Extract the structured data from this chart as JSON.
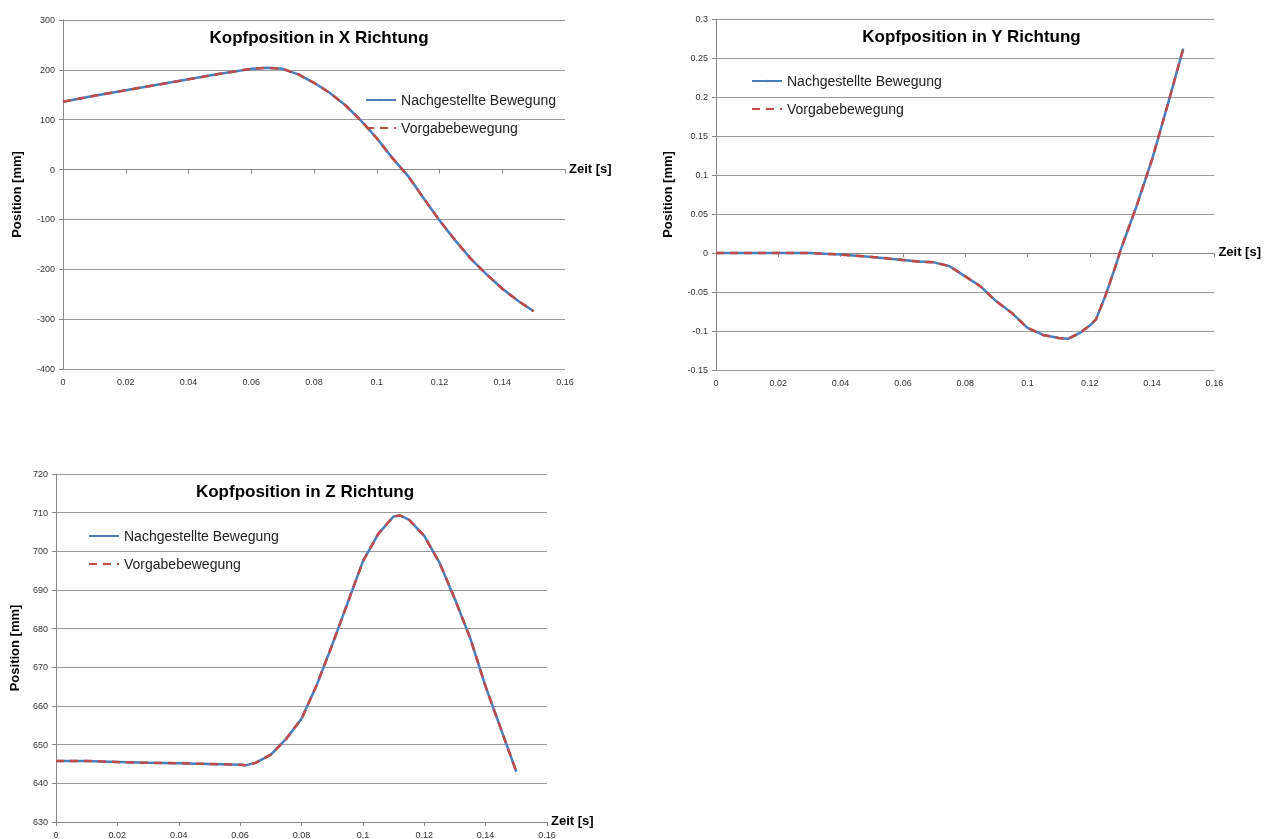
{
  "chart_data": [
    {
      "type": "line",
      "title": "Kopfposition in X Richtung",
      "xlabel": "Zeit [s]",
      "ylabel": "Position [mm]",
      "x": [
        0,
        0.01,
        0.02,
        0.03,
        0.04,
        0.05,
        0.06,
        0.065,
        0.07,
        0.075,
        0.08,
        0.085,
        0.09,
        0.095,
        0.1,
        0.105,
        0.11,
        0.115,
        0.12,
        0.125,
        0.13,
        0.135,
        0.14,
        0.145,
        0.15
      ],
      "series": [
        {
          "name": "Nachgestellte Bewegung",
          "color": "#4a7ebb",
          "line_style": "solid",
          "values": [
            136,
            148,
            159,
            170,
            181,
            192,
            202,
            204,
            202,
            191,
            174,
            154,
            129,
            98,
            63,
            23,
            -13,
            -58,
            -102,
            -142,
            -179,
            -210,
            -239,
            -263,
            -284
          ]
        },
        {
          "name": "Vorgabebewegung",
          "color": "#be4b48",
          "line_style": "dashed",
          "values": [
            136,
            148,
            159,
            170,
            181,
            192,
            202,
            204,
            202,
            191,
            174,
            154,
            129,
            98,
            63,
            23,
            -13,
            -58,
            -102,
            -142,
            -179,
            -210,
            -239,
            -263,
            -284
          ]
        }
      ],
      "xlim": [
        0,
        0.16
      ],
      "xticks": [
        0,
        0.02,
        0.04,
        0.06,
        0.08,
        0.1,
        0.12,
        0.14,
        0.16
      ],
      "ylim": [
        -400,
        300
      ],
      "yticks": [
        -400,
        -300,
        -200,
        -100,
        0,
        100,
        200,
        300
      ],
      "grid": "y",
      "legend": "top right",
      "marker": "none"
    },
    {
      "type": "line",
      "title": "Kopfposition in Y Richtung",
      "xlabel": "Zeit [s]",
      "ylabel": "Position [mm]",
      "x": [
        0,
        0.01,
        0.02,
        0.03,
        0.04,
        0.05,
        0.06,
        0.065,
        0.07,
        0.075,
        0.08,
        0.085,
        0.09,
        0.095,
        0.1,
        0.105,
        0.11,
        0.113,
        0.117,
        0.12,
        0.122,
        0.125,
        0.128,
        0.13,
        0.135,
        0.14,
        0.145,
        0.15
      ],
      "series": [
        {
          "name": "Nachgestellte Bewegung",
          "color": "#4a7ebb",
          "line_style": "solid",
          "values": [
            0,
            0,
            0,
            0,
            -0.002,
            -0.005,
            -0.009,
            -0.011,
            -0.012,
            -0.017,
            -0.03,
            -0.043,
            -0.062,
            -0.077,
            -0.096,
            -0.105,
            -0.109,
            -0.11,
            -0.102,
            -0.093,
            -0.085,
            -0.055,
            -0.02,
            0.005,
            0.06,
            0.12,
            0.19,
            0.262
          ]
        },
        {
          "name": "Vorgabebewegung",
          "color": "#be4b48",
          "line_style": "dashed",
          "values": [
            0,
            0,
            0,
            0,
            -0.002,
            -0.005,
            -0.009,
            -0.011,
            -0.012,
            -0.017,
            -0.03,
            -0.043,
            -0.062,
            -0.077,
            -0.096,
            -0.105,
            -0.109,
            -0.11,
            -0.102,
            -0.093,
            -0.085,
            -0.055,
            -0.02,
            0.005,
            0.06,
            0.12,
            0.19,
            0.262
          ]
        }
      ],
      "xlim": [
        0,
        0.16
      ],
      "xticks": [
        0,
        0.02,
        0.04,
        0.06,
        0.08,
        0.1,
        0.12,
        0.14,
        0.16
      ],
      "ylim": [
        -0.15,
        0.3
      ],
      "yticks": [
        -0.15,
        -0.1,
        -0.05,
        0,
        0.05,
        0.1,
        0.15,
        0.2,
        0.25,
        0.3
      ],
      "grid": "y",
      "legend": "top left",
      "marker": "none"
    },
    {
      "type": "line",
      "title": "Kopfposition in Z Richtung",
      "xlabel": "Zeit [s]",
      "ylabel": "Position [mm]",
      "x": [
        0,
        0.01,
        0.02,
        0.03,
        0.04,
        0.05,
        0.06,
        0.062,
        0.065,
        0.07,
        0.075,
        0.08,
        0.085,
        0.09,
        0.095,
        0.1,
        0.105,
        0.11,
        0.112,
        0.115,
        0.12,
        0.125,
        0.13,
        0.135,
        0.14,
        0.145,
        0.15
      ],
      "series": [
        {
          "name": "Nachgestellte Bewegung",
          "color": "#4a7ebb",
          "line_style": "solid",
          "values": [
            645.8,
            645.8,
            645.5,
            645.3,
            645.2,
            645,
            644.8,
            644.7,
            645.3,
            647.4,
            651.5,
            656.7,
            665.5,
            675.8,
            686.6,
            697.4,
            704.5,
            709,
            709.3,
            708.2,
            704,
            697,
            687.6,
            677.5,
            665,
            654,
            643
          ]
        },
        {
          "name": "Vorgabebewegung",
          "color": "#be4b48",
          "line_style": "dashed",
          "values": [
            645.8,
            645.8,
            645.5,
            645.3,
            645.2,
            645,
            644.8,
            644.7,
            645.3,
            647.4,
            651.5,
            656.7,
            665.5,
            675.8,
            686.6,
            697.4,
            704.5,
            709,
            709.3,
            708.2,
            704,
            697,
            687.6,
            677.5,
            665,
            654,
            643
          ]
        }
      ],
      "xlim": [
        0,
        0.16
      ],
      "xticks": [
        0,
        0.02,
        0.04,
        0.06,
        0.08,
        0.1,
        0.12,
        0.14,
        0.16
      ],
      "ylim": [
        630,
        720
      ],
      "yticks": [
        630,
        640,
        650,
        660,
        670,
        680,
        690,
        700,
        710,
        720
      ],
      "grid": "y",
      "legend": "top left",
      "marker": "none"
    }
  ]
}
